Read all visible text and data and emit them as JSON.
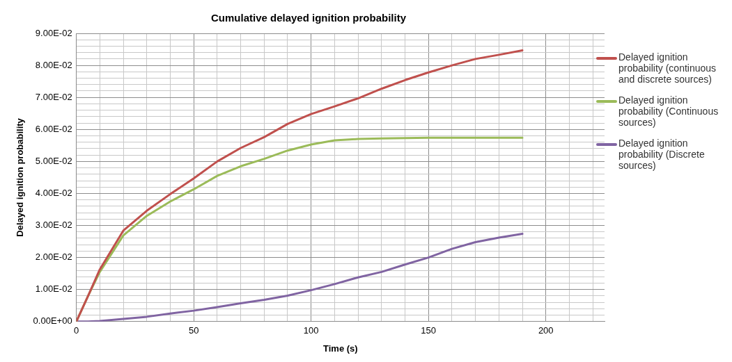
{
  "chart_data": {
    "type": "line",
    "title": "Cumulative delayed ignition probability",
    "xlabel": "Time (s)",
    "ylabel": "Delayed ignition probability",
    "x": [
      0,
      5,
      10,
      20,
      30,
      40,
      50,
      60,
      70,
      80,
      90,
      100,
      110,
      120,
      130,
      140,
      150,
      160,
      170,
      180,
      190
    ],
    "series": [
      {
        "name": "Delayed ignition probability (continuous and discrete sources)",
        "color": "#c0504d",
        "values": [
          0,
          0.008,
          0.0163,
          0.0284,
          0.0346,
          0.0398,
          0.0447,
          0.05,
          0.0542,
          0.0576,
          0.0617,
          0.0648,
          0.0672,
          0.0697,
          0.0727,
          0.0754,
          0.0778,
          0.08,
          0.082,
          0.0833,
          0.0847
        ]
      },
      {
        "name": "Delayed ignition probability (Continuous sources)",
        "color": "#9bbb59",
        "values": [
          0,
          0.008,
          0.0155,
          0.0269,
          0.033,
          0.0375,
          0.0413,
          0.0455,
          0.0485,
          0.0508,
          0.0534,
          0.0553,
          0.0566,
          0.057,
          0.0572,
          0.0573,
          0.0574,
          0.0574,
          0.0574,
          0.0574,
          0.0574
        ]
      },
      {
        "name": "Delayed ignition probability (Discrete sources)",
        "color": "#8064a2",
        "values": [
          0,
          0,
          0.0002,
          0.0008,
          0.0015,
          0.0025,
          0.0034,
          0.0045,
          0.0057,
          0.0068,
          0.0081,
          0.0098,
          0.0117,
          0.0138,
          0.0155,
          0.0178,
          0.02,
          0.0227,
          0.0248,
          0.0262,
          0.0274
        ]
      }
    ],
    "xlim": [
      0,
      225
    ],
    "xticks": [
      0,
      {
        "value": 10,
        "label": null
      },
      {
        "value": 20,
        "label": null
      },
      {
        "value": 30,
        "label": null
      },
      {
        "value": 40,
        "label": null
      },
      50,
      {
        "value": 60,
        "label": null
      },
      {
        "value": 70,
        "label": null
      },
      {
        "value": 80,
        "label": null
      },
      {
        "value": 90,
        "label": null
      },
      100,
      {
        "value": 110,
        "label": null
      },
      {
        "value": 120,
        "label": null
      },
      {
        "value": 130,
        "label": null
      },
      {
        "value": 140,
        "label": null
      },
      150,
      {
        "value": 160,
        "label": null
      },
      {
        "value": 170,
        "label": null
      },
      {
        "value": 180,
        "label": null
      },
      {
        "value": 190,
        "label": null
      },
      200,
      {
        "value": 210,
        "label": null
      },
      {
        "value": 220,
        "label": null
      }
    ],
    "ylim": [
      0,
      0.09
    ],
    "yticks": [
      {
        "value": 0,
        "label": "0.00E+00"
      },
      {
        "value": 0.002,
        "label": null
      },
      {
        "value": 0.004,
        "label": null
      },
      {
        "value": 0.006,
        "label": null
      },
      {
        "value": 0.008,
        "label": null
      },
      {
        "value": 0.01,
        "label": "1.00E-02"
      },
      {
        "value": 0.012,
        "label": null
      },
      {
        "value": 0.014,
        "label": null
      },
      {
        "value": 0.016,
        "label": null
      },
      {
        "value": 0.018,
        "label": null
      },
      {
        "value": 0.02,
        "label": "2.00E-02"
      },
      {
        "value": 0.022,
        "label": null
      },
      {
        "value": 0.024,
        "label": null
      },
      {
        "value": 0.026,
        "label": null
      },
      {
        "value": 0.028,
        "label": null
      },
      {
        "value": 0.03,
        "label": "3.00E-02"
      },
      {
        "value": 0.032,
        "label": null
      },
      {
        "value": 0.034,
        "label": null
      },
      {
        "value": 0.036,
        "label": null
      },
      {
        "value": 0.038,
        "label": null
      },
      {
        "value": 0.04,
        "label": "4.00E-02"
      },
      {
        "value": 0.042,
        "label": null
      },
      {
        "value": 0.044,
        "label": null
      },
      {
        "value": 0.046,
        "label": null
      },
      {
        "value": 0.048,
        "label": null
      },
      {
        "value": 0.05,
        "label": "5.00E-02"
      },
      {
        "value": 0.052,
        "label": null
      },
      {
        "value": 0.054,
        "label": null
      },
      {
        "value": 0.056,
        "label": null
      },
      {
        "value": 0.058,
        "label": null
      },
      {
        "value": 0.06,
        "label": "6.00E-02"
      },
      {
        "value": 0.062,
        "label": null
      },
      {
        "value": 0.064,
        "label": null
      },
      {
        "value": 0.066,
        "label": null
      },
      {
        "value": 0.068,
        "label": null
      },
      {
        "value": 0.07,
        "label": "7.00E-02"
      },
      {
        "value": 0.072,
        "label": null
      },
      {
        "value": 0.074,
        "label": null
      },
      {
        "value": 0.076,
        "label": null
      },
      {
        "value": 0.078,
        "label": null
      },
      {
        "value": 0.08,
        "label": "8.00E-02"
      },
      {
        "value": 0.082,
        "label": null
      },
      {
        "value": 0.084,
        "label": null
      },
      {
        "value": 0.086,
        "label": null
      },
      {
        "value": 0.088,
        "label": null
      },
      {
        "value": 0.09,
        "label": "9.00E-02"
      }
    ],
    "grid": true,
    "legend": "right",
    "marker": "none",
    "line_style": "solid"
  }
}
